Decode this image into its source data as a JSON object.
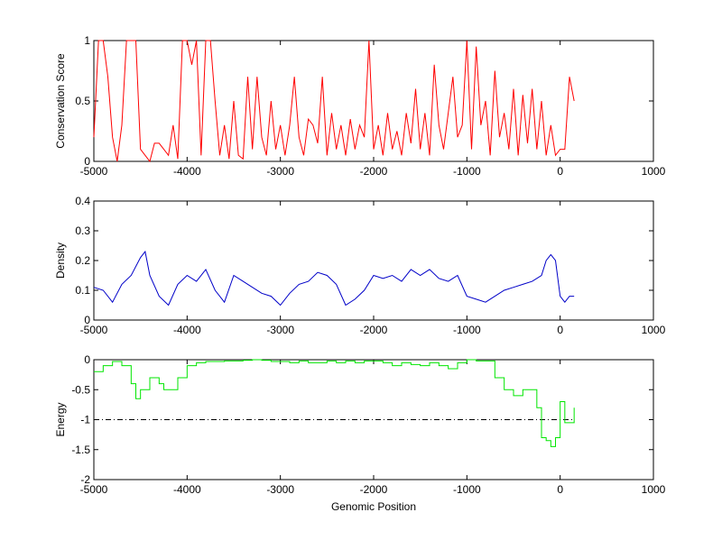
{
  "chart_data": [
    {
      "type": "line",
      "ylabel": "Conservation Score",
      "color": "#ff0000",
      "xlim": [
        -5000,
        1000
      ],
      "xticks": [
        -5000,
        -4000,
        -3000,
        -2000,
        -1000,
        0,
        1000
      ],
      "ylim": [
        0,
        1
      ],
      "yticks": [
        0,
        0.5,
        1
      ],
      "x": [
        -5000,
        -4950,
        -4900,
        -4850,
        -4800,
        -4750,
        -4700,
        -4650,
        -4600,
        -4550,
        -4500,
        -4450,
        -4400,
        -4350,
        -4300,
        -4250,
        -4200,
        -4150,
        -4100,
        -4050,
        -4000,
        -3950,
        -3900,
        -3850,
        -3800,
        -3750,
        -3700,
        -3650,
        -3600,
        -3550,
        -3500,
        -3450,
        -3400,
        -3350,
        -3300,
        -3250,
        -3200,
        -3150,
        -3100,
        -3050,
        -3000,
        -2950,
        -2900,
        -2850,
        -2800,
        -2750,
        -2700,
        -2650,
        -2600,
        -2550,
        -2500,
        -2450,
        -2400,
        -2350,
        -2300,
        -2250,
        -2200,
        -2150,
        -2100,
        -2050,
        -2000,
        -1950,
        -1900,
        -1850,
        -1800,
        -1750,
        -1700,
        -1650,
        -1600,
        -1550,
        -1500,
        -1450,
        -1400,
        -1350,
        -1300,
        -1250,
        -1200,
        -1150,
        -1100,
        -1050,
        -1000,
        -950,
        -900,
        -850,
        -800,
        -750,
        -700,
        -650,
        -600,
        -550,
        -500,
        -450,
        -400,
        -350,
        -300,
        -250,
        -200,
        -150,
        -100,
        -50,
        0,
        50,
        100,
        150
      ],
      "values": [
        0.2,
        1,
        1,
        0.7,
        0.2,
        0,
        0.3,
        1,
        1,
        1,
        0.1,
        0.05,
        0,
        0.15,
        0.15,
        0.1,
        0.05,
        0.3,
        0.02,
        1,
        1,
        0.8,
        1,
        0.05,
        1,
        1,
        0.5,
        0.05,
        0.3,
        0.02,
        0.5,
        0.05,
        0.02,
        0.7,
        0.1,
        0.7,
        0.2,
        0.05,
        0.5,
        0.1,
        0.3,
        0.05,
        0.3,
        0.7,
        0.2,
        0.05,
        0.35,
        0.3,
        0.15,
        0.7,
        0.05,
        0.4,
        0.1,
        0.3,
        0.05,
        0.35,
        0.1,
        0.3,
        0.2,
        1,
        0.1,
        0.3,
        0.05,
        0.4,
        0.1,
        0.25,
        0.05,
        0.4,
        0.15,
        0.6,
        0.1,
        0.4,
        0.05,
        0.8,
        0.3,
        0.1,
        0.4,
        0.7,
        0.2,
        0.3,
        1,
        0.1,
        0.95,
        0.3,
        0.5,
        0.05,
        0.75,
        0.2,
        0.4,
        0.1,
        0.6,
        0.05,
        0.55,
        0.15,
        0.6,
        0.1,
        0.5,
        0.05,
        0.3,
        0.05,
        0.1,
        0.1,
        0.7,
        0.5
      ]
    },
    {
      "type": "line",
      "ylabel": "Density",
      "color": "#0000c8",
      "xlim": [
        -5000,
        1000
      ],
      "xticks": [
        -5000,
        -4000,
        -3000,
        -2000,
        -1000,
        0,
        1000
      ],
      "ylim": [
        0,
        0.4
      ],
      "yticks": [
        0,
        0.1,
        0.2,
        0.3,
        0.4
      ],
      "x": [
        -5000,
        -4900,
        -4800,
        -4700,
        -4600,
        -4500,
        -4450,
        -4400,
        -4300,
        -4200,
        -4100,
        -4000,
        -3900,
        -3800,
        -3700,
        -3600,
        -3500,
        -3400,
        -3300,
        -3200,
        -3100,
        -3000,
        -2900,
        -2800,
        -2700,
        -2600,
        -2500,
        -2400,
        -2300,
        -2200,
        -2100,
        -2000,
        -1900,
        -1800,
        -1700,
        -1600,
        -1500,
        -1400,
        -1300,
        -1200,
        -1100,
        -1000,
        -900,
        -800,
        -700,
        -600,
        -500,
        -400,
        -300,
        -200,
        -150,
        -100,
        -50,
        0,
        50,
        100,
        150
      ],
      "values": [
        0.11,
        0.1,
        0.06,
        0.12,
        0.15,
        0.21,
        0.23,
        0.15,
        0.08,
        0.05,
        0.12,
        0.15,
        0.13,
        0.17,
        0.1,
        0.06,
        0.15,
        0.13,
        0.11,
        0.09,
        0.08,
        0.05,
        0.09,
        0.12,
        0.13,
        0.16,
        0.15,
        0.12,
        0.05,
        0.07,
        0.1,
        0.15,
        0.14,
        0.15,
        0.13,
        0.17,
        0.15,
        0.17,
        0.14,
        0.13,
        0.15,
        0.08,
        0.07,
        0.06,
        0.08,
        0.1,
        0.11,
        0.12,
        0.13,
        0.15,
        0.2,
        0.22,
        0.2,
        0.08,
        0.06,
        0.08,
        0.08
      ]
    },
    {
      "type": "line",
      "drawstyle": "steps",
      "ylabel": "Energy",
      "xlabel": "Genomic Position",
      "color": "#00e600",
      "xlim": [
        -5000,
        1000
      ],
      "xticks": [
        -5000,
        -4000,
        -3000,
        -2000,
        -1000,
        0,
        1000
      ],
      "ylim": [
        -2,
        0
      ],
      "yticks": [
        0,
        -0.5,
        -1,
        -1.5,
        -2
      ],
      "ref_line": {
        "y": -1,
        "x": [
          -5000,
          150
        ]
      },
      "x": [
        -5000,
        -4900,
        -4800,
        -4700,
        -4600,
        -4550,
        -4500,
        -4400,
        -4300,
        -4250,
        -4100,
        -4000,
        -3900,
        -3800,
        -3700,
        -3600,
        -3500,
        -3400,
        -3300,
        -3200,
        -3100,
        -3000,
        -2900,
        -2800,
        -2700,
        -2600,
        -2500,
        -2400,
        -2300,
        -2200,
        -2100,
        -2000,
        -1900,
        -1800,
        -1700,
        -1600,
        -1500,
        -1400,
        -1300,
        -1200,
        -1100,
        -1000,
        -900,
        -800,
        -700,
        -600,
        -500,
        -400,
        -300,
        -250,
        -200,
        -150,
        -100,
        -50,
        0,
        50,
        100,
        150
      ],
      "values": [
        -0.2,
        -0.1,
        -0.03,
        -0.1,
        -0.4,
        -0.65,
        -0.5,
        -0.3,
        -0.4,
        -0.5,
        -0.3,
        -0.1,
        -0.05,
        -0.03,
        -0.03,
        -0.02,
        -0.02,
        -0.01,
        0,
        -0.01,
        -0.03,
        -0.03,
        -0.05,
        -0.02,
        -0.05,
        -0.05,
        -0.02,
        -0.05,
        -0.02,
        -0.05,
        -0.02,
        -0.02,
        -0.05,
        -0.1,
        -0.05,
        -0.08,
        -0.1,
        -0.05,
        -0.1,
        -0.15,
        -0.05,
        0,
        -0.02,
        -0.02,
        -0.3,
        -0.5,
        -0.6,
        -0.5,
        -0.5,
        -0.8,
        -1.3,
        -1.35,
        -1.45,
        -1.3,
        -0.7,
        -1.05,
        -1.05,
        -0.8
      ]
    }
  ]
}
